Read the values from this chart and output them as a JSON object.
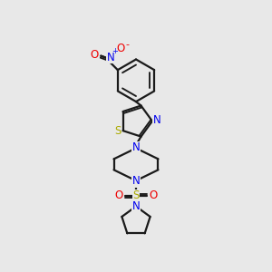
{
  "bg_color": "#e8e8e8",
  "bond_color": "#1a1a1a",
  "bond_width": 1.6,
  "atom_colors": {
    "N": "#0000ee",
    "O": "#ee0000",
    "S": "#aaaa00",
    "C": "#1a1a1a"
  },
  "font_size_atom": 8.5,
  "fig_w": 3.0,
  "fig_h": 3.0,
  "dpi": 100
}
